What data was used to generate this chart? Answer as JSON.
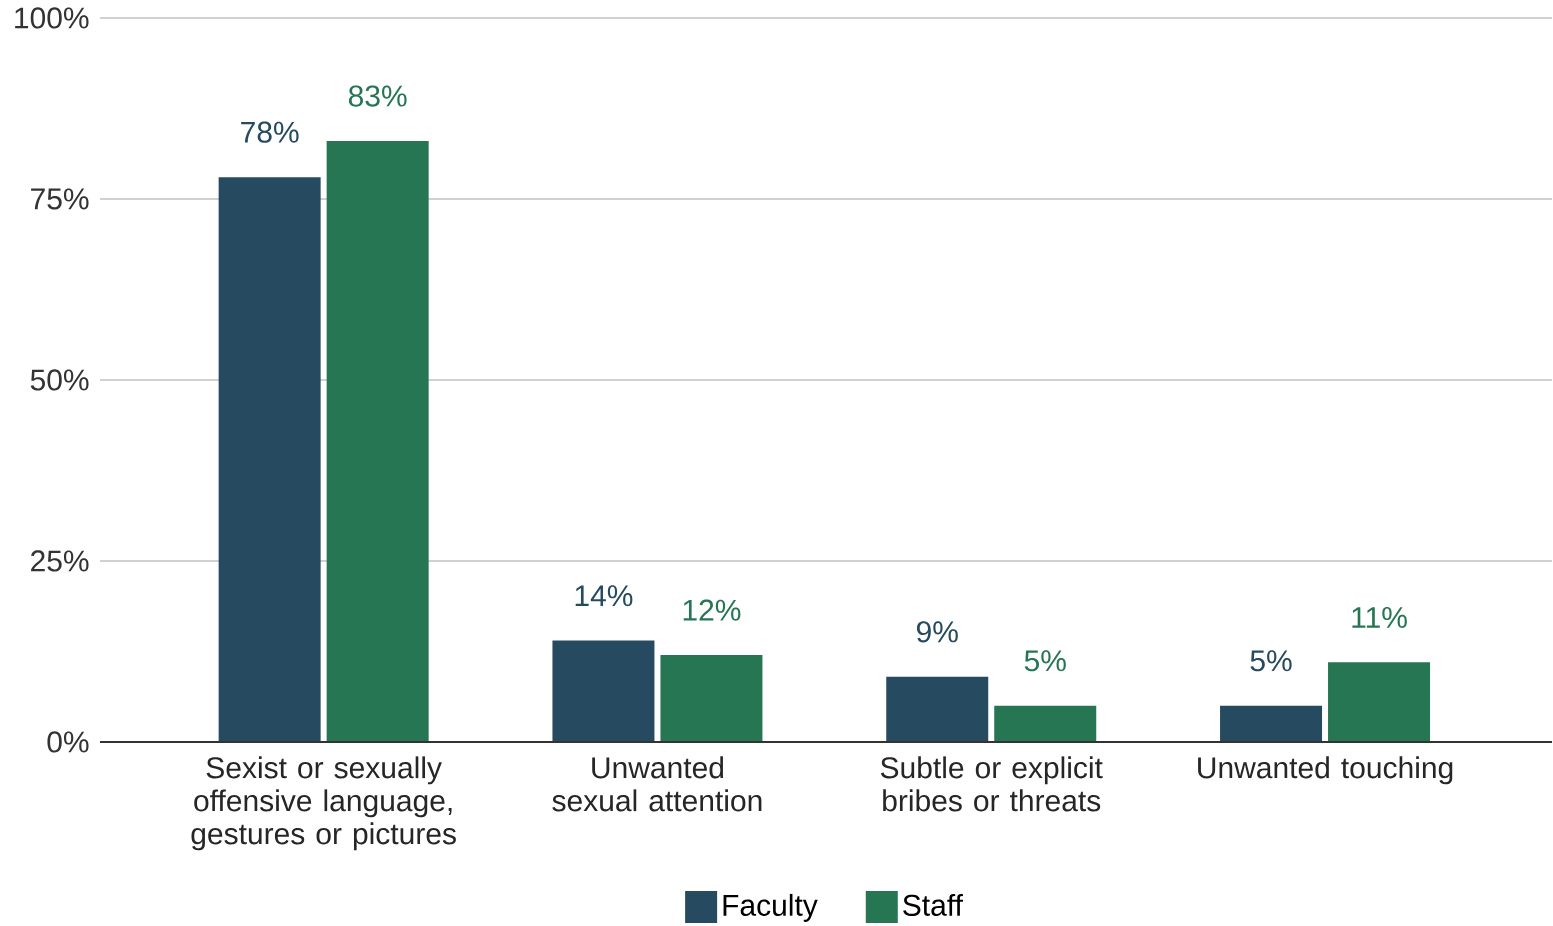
{
  "chart_data": {
    "type": "bar",
    "categories": [
      "Sexist or sexually offensive language, gestures or pictures",
      "Unwanted sexual attention",
      "Subtle or explicit bribes or threats",
      "Unwanted touching"
    ],
    "series": [
      {
        "name": "Faculty",
        "color": "#264a60",
        "values": [
          78,
          14,
          9,
          5
        ],
        "value_labels": [
          "78%",
          "14%",
          "9%",
          "5%"
        ]
      },
      {
        "name": "Staff",
        "color": "#267553",
        "values": [
          83,
          12,
          5,
          11
        ],
        "value_labels": [
          "83%",
          "12%",
          "5%",
          "11%"
        ]
      }
    ],
    "ylim": [
      0,
      100
    ],
    "yticks": [
      {
        "value": 0,
        "label": "0%"
      },
      {
        "value": 25,
        "label": "25%"
      },
      {
        "value": 50,
        "label": "50%"
      },
      {
        "value": 75,
        "label": "75%"
      },
      {
        "value": 100,
        "label": "100%"
      }
    ],
    "grid": "y",
    "legend": "bottom"
  }
}
